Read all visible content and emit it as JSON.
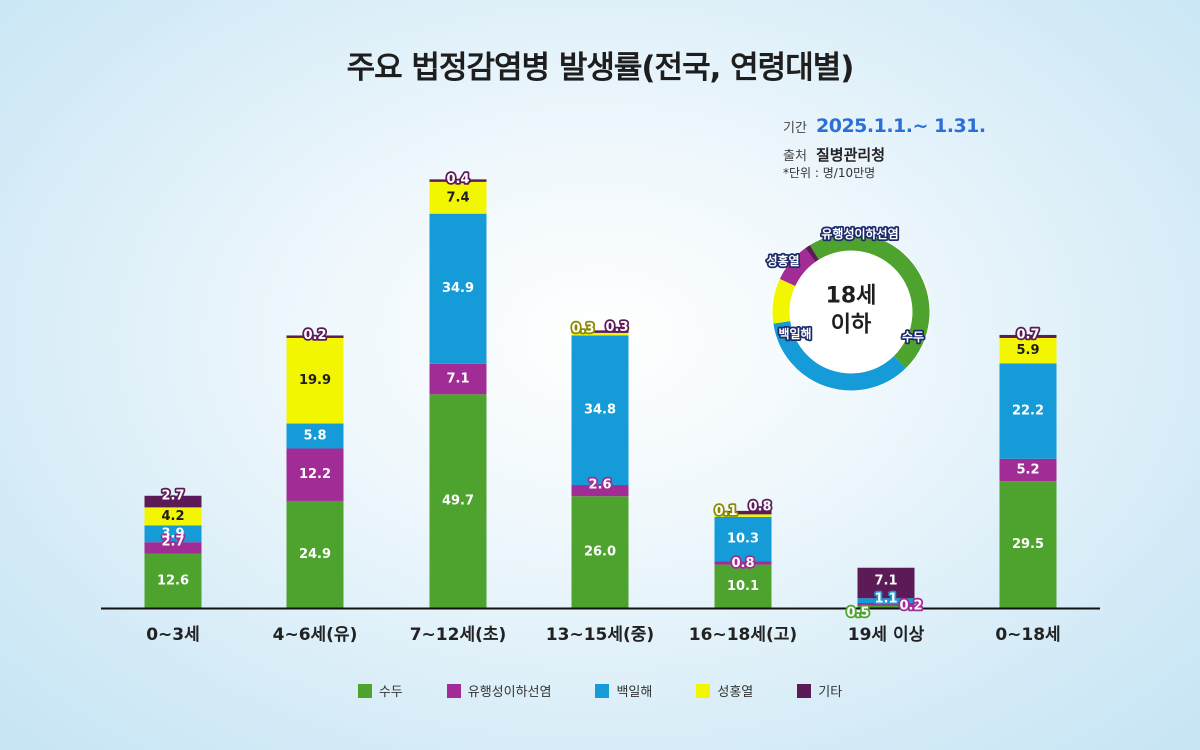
{
  "title": "주요 법정감염병 발생률(전국, 연령대별)",
  "info": {
    "period_label": "기간",
    "period_value": "2025.1.1.~ 1.31.",
    "source_label": "출처",
    "source_value": "질병관리청",
    "unit_note": "*단위 : 명/10만명"
  },
  "colors": {
    "수두": "#4ea32e",
    "유행성이하선염": "#a12c95",
    "백일해": "#159bd7",
    "성홍열": "#f2f600",
    "기타": "#5c1a57"
  },
  "chart_data": {
    "type": "bar",
    "stacked": true,
    "categories": [
      "0~3세",
      "4~6세(유)",
      "7~12세(초)",
      "13~15세(중)",
      "16~18세(고)",
      "19세 이상",
      "0~18세"
    ],
    "series": [
      {
        "name": "수두",
        "values": [
          12.6,
          24.9,
          49.7,
          26.0,
          10.1,
          0.5,
          29.5
        ]
      },
      {
        "name": "유행성이하선염",
        "values": [
          2.7,
          12.2,
          7.1,
          2.6,
          0.8,
          0.2,
          5.2
        ]
      },
      {
        "name": "백일해",
        "values": [
          3.9,
          5.8,
          34.9,
          34.8,
          10.3,
          1.1,
          22.2
        ]
      },
      {
        "name": "성홍열",
        "values": [
          4.2,
          19.9,
          7.4,
          0.3,
          0.1,
          0.0,
          5.9
        ]
      },
      {
        "name": "기타",
        "values": [
          2.7,
          0.2,
          0.4,
          0.3,
          0.8,
          7.1,
          0.7
        ]
      }
    ],
    "legend_position": "bottom",
    "grid": false
  },
  "donut": {
    "center_line1": "18세",
    "center_line2": "이하",
    "segments": [
      {
        "name": "수두",
        "value": 29.5,
        "label": "수두"
      },
      {
        "name": "백일해",
        "value": 22.2,
        "label": "백일해"
      },
      {
        "name": "성홍열",
        "value": 5.9,
        "label": "성홍열"
      },
      {
        "name": "유행성이하선염",
        "value": 5.2,
        "label": "유행성이하선염"
      },
      {
        "name": "기타",
        "value": 0.7,
        "label": ""
      }
    ]
  },
  "legend": [
    {
      "name": "수두"
    },
    {
      "name": "유행성이하선염"
    },
    {
      "name": "백일해"
    },
    {
      "name": "성홍열"
    },
    {
      "name": "기타"
    }
  ]
}
